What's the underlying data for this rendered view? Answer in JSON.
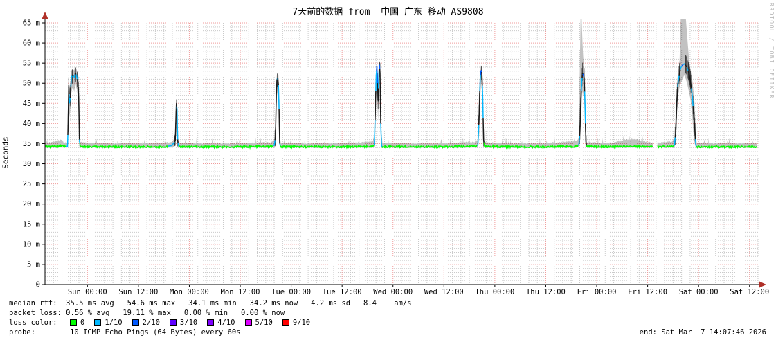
{
  "title": "7天前的数据 from  中国 广东 移动 AS9808",
  "watermark": "RRDTOOL / TOBI OETIKER",
  "y_axis": {
    "label": "Seconds",
    "ticks": [
      "0",
      "5 m",
      "10 m",
      "15 m",
      "20 m",
      "25 m",
      "30 m",
      "35 m",
      "40 m",
      "45 m",
      "50 m",
      "55 m",
      "60 m",
      "65 m"
    ]
  },
  "stats": {
    "median_rtt_line": "median rtt:  35.5 ms avg   54.6 ms max   34.1 ms min   34.2 ms now   4.2 ms sd   8.4    am/s",
    "packet_loss_line": "packet loss: 0.56 % avg   19.11 % max   0.00 % min   0.00 % now"
  },
  "loss_legend": {
    "label": "loss color:",
    "items": [
      {
        "label": "0",
        "color": "#00ff00"
      },
      {
        "label": "1/10",
        "color": "#00b8ff"
      },
      {
        "label": "2/10",
        "color": "#0059ff"
      },
      {
        "label": "3/10",
        "color": "#5e00ff"
      },
      {
        "label": "4/10",
        "color": "#7e00ff"
      },
      {
        "label": "5/10",
        "color": "#dd00ff"
      },
      {
        "label": "9/10",
        "color": "#ff0000"
      }
    ]
  },
  "probe": {
    "label": "probe:",
    "text": "10 ICMP Echo Pings (64 Bytes) every 60s"
  },
  "end_text": "end: Sat Mar  7 14:07:46 2026",
  "chart_data": {
    "type": "line",
    "subtype": "smokeping-latency",
    "title": "7天前的数据 from 中国 广东 移动 AS9808",
    "ylabel": "Seconds",
    "y_unit": "ms",
    "ylim": [
      0,
      65
    ],
    "y_tick_step_ms": 5,
    "x_unit": "hours_from_start",
    "xlim": [
      0,
      168
    ],
    "x_ticks": {
      "first_hour": 10,
      "step_hours": 12,
      "labels": [
        "Sun 00:00",
        "Sun 12:00",
        "Mon 00:00",
        "Mon 12:00",
        "Tue 00:00",
        "Tue 12:00",
        "Wed 00:00",
        "Wed 12:00",
        "Thu 00:00",
        "Thu 12:00",
        "Fri 00:00",
        "Fri 12:00",
        "Sat 00:00",
        "Sat 12:00"
      ]
    },
    "baseline_ms": 34.2,
    "rtt_stats_ms": {
      "avg": 35.5,
      "max": 54.6,
      "min": 34.1,
      "now": 34.2,
      "sd": 4.2,
      "rate": "8.4 am/s"
    },
    "packet_loss_pct": {
      "avg": 0.56,
      "max": 19.11,
      "min": 0.0,
      "now": 0.0
    },
    "loss_colors": {
      "0": "#00ff00",
      "1/10": "#00b8ff",
      "2/10": "#0059ff",
      "3/10": "#5e00ff",
      "4/10": "#7e00ff",
      "5/10": "#dd00ff",
      "9/10": "#ff0000"
    },
    "median_color_map": {
      "0": "#00ff00",
      "1": "#00b8ff",
      "2": "#0059ff",
      "7": "#1a1a1a"
    },
    "layout": {
      "grid_minor_color": "#c9c9c9",
      "grid_major_color": "#f09b9b",
      "axis_color": "#000000",
      "arrow_color": "#b03028",
      "smoke_color": "#000000",
      "smoke_opacity": 0.24,
      "legend_position": "bottom",
      "grid": "on"
    },
    "points_format": [
      "hour",
      "median_ms",
      "smoke_min_ms",
      "smoke_max_ms",
      "color_idx"
    ],
    "points": [
      [
        0,
        34.2,
        34,
        34.9,
        0
      ],
      [
        4.0,
        34.4,
        34,
        35.8,
        0
      ],
      [
        4.4,
        34.3,
        34,
        35,
        0
      ],
      [
        5.3,
        34.3,
        34,
        35.2,
        1
      ],
      [
        5.45,
        40,
        35,
        46,
        7
      ],
      [
        5.6,
        49.5,
        45,
        51.5,
        7
      ],
      [
        5.75,
        45,
        41.5,
        49,
        1
      ],
      [
        6.0,
        47,
        44,
        50.5,
        7
      ],
      [
        6.2,
        51.5,
        47.5,
        53,
        1
      ],
      [
        6.5,
        52,
        49,
        53.5,
        7
      ],
      [
        6.9,
        51.5,
        48,
        53.2,
        1
      ],
      [
        7.15,
        52.5,
        50,
        54,
        7
      ],
      [
        7.4,
        52,
        49,
        53.6,
        1
      ],
      [
        7.7,
        50.5,
        47,
        52.5,
        7
      ],
      [
        7.95,
        46.5,
        42,
        50,
        7
      ],
      [
        8.1,
        36,
        34.2,
        44,
        1
      ],
      [
        8.3,
        34.3,
        34,
        35.2,
        0
      ],
      [
        12,
        34.2,
        34,
        34.9,
        0
      ],
      [
        20,
        34.2,
        34,
        34.9,
        0
      ],
      [
        28,
        34.2,
        34,
        35,
        0
      ],
      [
        29.8,
        34.5,
        34,
        35.4,
        1
      ],
      [
        30.3,
        35.1,
        34.2,
        36,
        1
      ],
      [
        30.7,
        35.8,
        34.5,
        37.5,
        7
      ],
      [
        30.95,
        45,
        38.5,
        45.8,
        7
      ],
      [
        31.1,
        43.5,
        37,
        45.4,
        1
      ],
      [
        31.25,
        36,
        34.3,
        38,
        7
      ],
      [
        31.45,
        34.5,
        34,
        35.3,
        1
      ],
      [
        31.7,
        34.2,
        34,
        35,
        0
      ],
      [
        38,
        34.2,
        34,
        34.9,
        0
      ],
      [
        46,
        34.2,
        34,
        34.9,
        0
      ],
      [
        53.5,
        34.3,
        34,
        35.2,
        0
      ],
      [
        54.0,
        34.6,
        34,
        36,
        1
      ],
      [
        54.3,
        36.5,
        34.5,
        40,
        7
      ],
      [
        54.5,
        47,
        42,
        50.5,
        7
      ],
      [
        54.65,
        51,
        47,
        52.3,
        1
      ],
      [
        54.85,
        51.3,
        48,
        52.5,
        7
      ],
      [
        55.0,
        49.5,
        45,
        52,
        1
      ],
      [
        55.15,
        43.5,
        38,
        48,
        7
      ],
      [
        55.3,
        35,
        34.2,
        37,
        1
      ],
      [
        55.55,
        34.2,
        34,
        35,
        0
      ],
      [
        62,
        34.2,
        34,
        34.9,
        0
      ],
      [
        70,
        34.2,
        34,
        34.9,
        0
      ],
      [
        77.3,
        34.3,
        34,
        35.4,
        0
      ],
      [
        77.6,
        34.8,
        34.2,
        36,
        1
      ],
      [
        77.85,
        44,
        38,
        50,
        7
      ],
      [
        78.05,
        52,
        46,
        54.2,
        1
      ],
      [
        78.2,
        54.2,
        50,
        55.2,
        2
      ],
      [
        78.35,
        50,
        44.5,
        53.5,
        7
      ],
      [
        78.5,
        45.5,
        40.5,
        50.5,
        7
      ],
      [
        78.65,
        52,
        47,
        54.6,
        1
      ],
      [
        78.8,
        54.6,
        51,
        55.6,
        2
      ],
      [
        78.95,
        52.5,
        47.5,
        55,
        7
      ],
      [
        79.1,
        40,
        36,
        47,
        1
      ],
      [
        79.3,
        34.6,
        34,
        36,
        1
      ],
      [
        79.5,
        34.2,
        34,
        35,
        0
      ],
      [
        86,
        34.2,
        34,
        34.9,
        0
      ],
      [
        94,
        34.2,
        34,
        34.9,
        0
      ],
      [
        101.5,
        34.3,
        34,
        35.3,
        0
      ],
      [
        102.0,
        34.7,
        34,
        36,
        1
      ],
      [
        102.3,
        42,
        37,
        48.5,
        7
      ],
      [
        102.55,
        51,
        46,
        53.2,
        1
      ],
      [
        102.75,
        53.2,
        50,
        54.5,
        2
      ],
      [
        102.95,
        52.3,
        48,
        54,
        7
      ],
      [
        103.15,
        46.5,
        41,
        51,
        1
      ],
      [
        103.35,
        36,
        34.3,
        40,
        7
      ],
      [
        103.55,
        34.3,
        34,
        35.2,
        0
      ],
      [
        110,
        34.2,
        34,
        34.9,
        0
      ],
      [
        118,
        34.2,
        34,
        34.9,
        0
      ],
      [
        125.3,
        34.3,
        34,
        35.5,
        0
      ],
      [
        125.8,
        34.8,
        34.2,
        36.5,
        1
      ],
      [
        126.05,
        38,
        35,
        56,
        7
      ],
      [
        126.2,
        44,
        38.5,
        66,
        7
      ],
      [
        126.45,
        50,
        44.5,
        66,
        1
      ],
      [
        126.65,
        52.6,
        48,
        60,
        7
      ],
      [
        126.85,
        52,
        47,
        56,
        2
      ],
      [
        127.05,
        51.3,
        46,
        54,
        7
      ],
      [
        127.25,
        44.5,
        39,
        51,
        1
      ],
      [
        127.45,
        35.5,
        34.3,
        38,
        7
      ],
      [
        127.7,
        34.3,
        34,
        35.2,
        0
      ],
      [
        133,
        34.2,
        34,
        34.9,
        0
      ],
      [
        137,
        34.3,
        34,
        35.8,
        0
      ],
      [
        139,
        34.3,
        34,
        36,
        0
      ],
      [
        141.5,
        34.2,
        34,
        35.3,
        0
      ],
      [
        143.2,
        34.2,
        34,
        35,
        0
      ],
      [
        143.35,
        null,
        null,
        null,
        0
      ],
      [
        144.25,
        null,
        null,
        null,
        0
      ],
      [
        144.3,
        34.2,
        34,
        35,
        0
      ],
      [
        147.8,
        34.3,
        34,
        35.4,
        0
      ],
      [
        148.3,
        34.6,
        34,
        36.2,
        1
      ],
      [
        148.6,
        37.5,
        35,
        42.5,
        7
      ],
      [
        148.9,
        46,
        42,
        50,
        7
      ],
      [
        149.2,
        50.5,
        47,
        53,
        1
      ],
      [
        149.5,
        52.5,
        49,
        55,
        7
      ],
      [
        149.8,
        53.8,
        50,
        66,
        1
      ],
      [
        150.2,
        54.5,
        51,
        66,
        2
      ],
      [
        150.6,
        54.8,
        52,
        66,
        1
      ],
      [
        151.0,
        54.4,
        51,
        66,
        7
      ],
      [
        151.3,
        53.8,
        50,
        62,
        1
      ],
      [
        151.7,
        52.5,
        48,
        56.5,
        7
      ],
      [
        152.1,
        50.5,
        46,
        53.5,
        7
      ],
      [
        152.5,
        47,
        42,
        51,
        1
      ],
      [
        152.8,
        43,
        37.5,
        48,
        7
      ],
      [
        153.1,
        39,
        35,
        44.5,
        7
      ],
      [
        153.35,
        34.6,
        34,
        36.5,
        1
      ],
      [
        153.6,
        34.2,
        34,
        35,
        0
      ],
      [
        158,
        34.2,
        34,
        34.9,
        0
      ],
      [
        163,
        34.2,
        34,
        34.9,
        0
      ],
      [
        167.8,
        34.2,
        34,
        34.9,
        0
      ]
    ]
  }
}
